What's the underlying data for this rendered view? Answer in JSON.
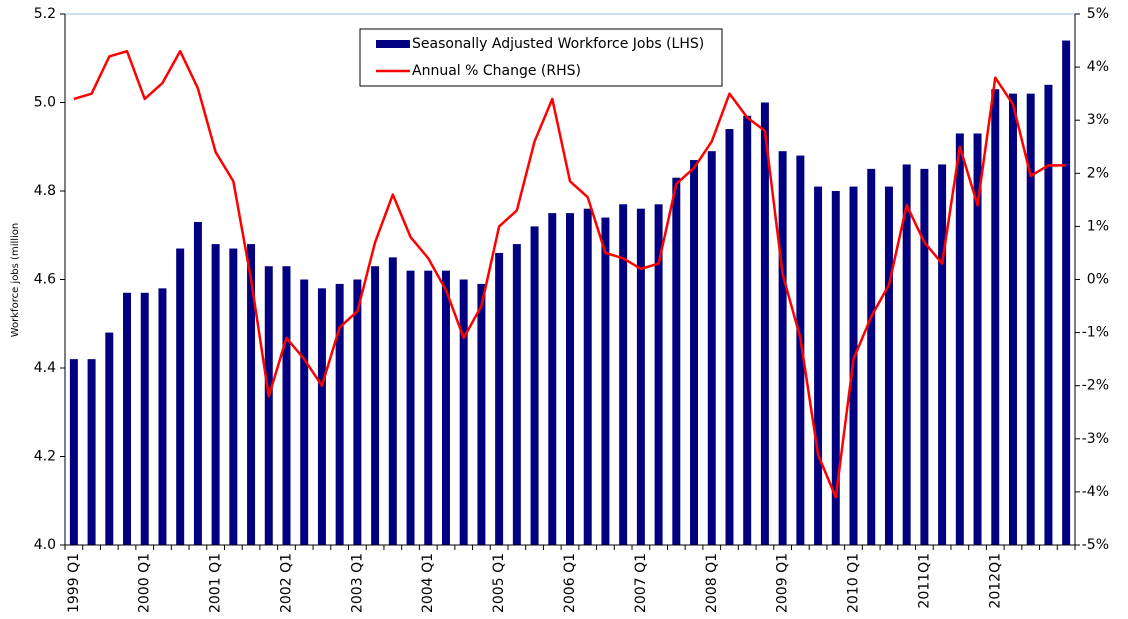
{
  "chart_data": {
    "type": "bar_line",
    "y_axis_label": "Workforce jobs (million",
    "categories": [
      "1999 Q1",
      null,
      null,
      null,
      "2000 Q1",
      null,
      null,
      null,
      "2001 Q1",
      null,
      null,
      null,
      "2002 Q1",
      null,
      null,
      null,
      "2003 Q1",
      null,
      null,
      null,
      "2004 Q1",
      null,
      null,
      null,
      "2005 Q1",
      null,
      null,
      null,
      "2006 Q1",
      null,
      null,
      null,
      "2007 Q1",
      null,
      null,
      null,
      "2008 Q1",
      null,
      null,
      null,
      "2009 Q1",
      null,
      null,
      null,
      "2010 Q1",
      null,
      null,
      null,
      "2011Q1",
      null,
      null,
      null,
      "2012Q1",
      null,
      null,
      null,
      null
    ],
    "series": [
      {
        "name": "Seasonally Adjusted Workforce Jobs (LHS)",
        "color": "#000080",
        "type": "bar",
        "values": [
          4.42,
          4.42,
          4.48,
          4.57,
          4.57,
          4.58,
          4.67,
          4.73,
          4.68,
          4.67,
          4.68,
          4.63,
          4.63,
          4.6,
          4.58,
          4.59,
          4.6,
          4.63,
          4.65,
          4.62,
          4.62,
          4.62,
          4.6,
          4.59,
          4.66,
          4.68,
          4.72,
          4.75,
          4.75,
          4.76,
          4.74,
          4.77,
          4.76,
          4.77,
          4.83,
          4.87,
          4.89,
          4.94,
          4.97,
          5.0,
          4.89,
          4.88,
          4.81,
          4.8,
          4.81,
          4.85,
          4.81,
          4.86,
          4.85,
          4.86,
          4.93,
          4.93,
          5.03,
          5.02,
          5.02,
          5.04,
          5.14
        ]
      },
      {
        "name": "Annual % Change (RHS)",
        "color": "#ff0000",
        "type": "line",
        "axis": "y2",
        "values": [
          3.4,
          3.5,
          4.2,
          4.3,
          3.4,
          3.7,
          4.3,
          3.6,
          2.4,
          1.85,
          0.0,
          -2.2,
          -1.1,
          -1.5,
          -2.0,
          -0.9,
          -0.6,
          0.7,
          1.6,
          0.8,
          0.4,
          -0.2,
          -1.1,
          -0.5,
          1.0,
          1.3,
          2.6,
          3.4,
          1.85,
          1.55,
          0.5,
          0.4,
          0.2,
          0.3,
          1.8,
          2.1,
          2.6,
          3.5,
          3.05,
          2.8,
          0.1,
          -1.1,
          -3.3,
          -4.1,
          -1.5,
          -0.7,
          -0.1,
          1.4,
          0.7,
          0.3,
          2.5,
          1.4,
          3.8,
          3.3,
          1.95,
          2.15,
          2.15
        ]
      }
    ],
    "ylim": [
      4.0,
      5.2
    ],
    "yticks": [
      {
        "value": 4.0,
        "label": "4.0"
      },
      4.2,
      4.4,
      4.6,
      4.8,
      {
        "value": 5.0,
        "label": "5.0"
      },
      5.2
    ],
    "y2lim": [
      -5,
      5
    ],
    "y2ticks": [
      {
        "value": -5,
        "label": "-5%"
      },
      {
        "value": -4,
        "label": "-4%"
      },
      {
        "value": -3,
        "label": "-3%"
      },
      {
        "value": -2,
        "label": "-2%"
      },
      {
        "value": -1,
        "label": "-1%"
      },
      {
        "value": 0,
        "label": "0%"
      },
      {
        "value": 1,
        "label": "1%"
      },
      {
        "value": 2,
        "label": "2%"
      },
      {
        "value": 3,
        "label": "3%"
      },
      {
        "value": 4,
        "label": "4%"
      },
      {
        "value": 5,
        "label": "5%"
      }
    ],
    "legend": "top"
  }
}
